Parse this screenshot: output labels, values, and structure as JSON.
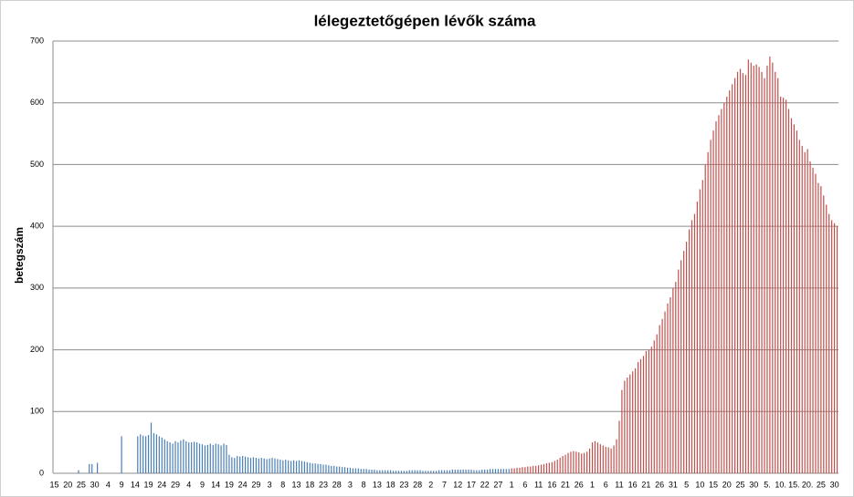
{
  "chart_data": {
    "type": "bar",
    "title": "lélegeztetőgépen lévők száma",
    "y_label": "betegszám",
    "categories": [
      "15",
      null,
      null,
      null,
      null,
      "20",
      null,
      null,
      null,
      null,
      "25",
      null,
      null,
      null,
      null,
      "30",
      null,
      null,
      null,
      null,
      "4",
      null,
      null,
      null,
      null,
      "9",
      null,
      null,
      null,
      null,
      "14",
      null,
      null,
      null,
      null,
      "19",
      null,
      null,
      null,
      null,
      "24",
      null,
      null,
      null,
      null,
      "29",
      null,
      null,
      null,
      null,
      "4",
      null,
      null,
      null,
      null,
      "9",
      null,
      null,
      null,
      null,
      "14",
      null,
      null,
      null,
      null,
      "19",
      null,
      null,
      null,
      null,
      "24",
      null,
      null,
      null,
      null,
      "29",
      null,
      null,
      null,
      null,
      "3",
      null,
      null,
      null,
      null,
      "8",
      null,
      null,
      null,
      null,
      "13",
      null,
      null,
      null,
      null,
      "18",
      null,
      null,
      null,
      null,
      "23",
      null,
      null,
      null,
      null,
      "28",
      null,
      null,
      null,
      null,
      "3",
      null,
      null,
      null,
      null,
      "8",
      null,
      null,
      null,
      null,
      "13",
      null,
      null,
      null,
      null,
      "18",
      null,
      null,
      null,
      null,
      "23",
      null,
      null,
      null,
      null,
      "28",
      null,
      null,
      null,
      null,
      "2",
      null,
      null,
      null,
      null,
      "7",
      null,
      null,
      null,
      null,
      "12",
      null,
      null,
      null,
      null,
      "17",
      null,
      null,
      null,
      null,
      "22",
      null,
      null,
      null,
      null,
      "27",
      null,
      null,
      null,
      null,
      "1",
      null,
      null,
      null,
      null,
      "6",
      null,
      null,
      null,
      null,
      "11",
      null,
      null,
      null,
      null,
      "16",
      null,
      null,
      null,
      null,
      "21",
      null,
      null,
      null,
      null,
      "26",
      null,
      null,
      null,
      null,
      "1",
      null,
      null,
      null,
      null,
      "6",
      null,
      null,
      null,
      null,
      "11",
      null,
      null,
      null,
      null,
      "16",
      null,
      null,
      null,
      null,
      "21",
      null,
      null,
      null,
      null,
      "26",
      null,
      null,
      null,
      null,
      "31",
      null,
      null,
      null,
      null,
      "5",
      null,
      null,
      null,
      null,
      "10",
      null,
      null,
      null,
      null,
      "15",
      null,
      null,
      null,
      null,
      "20",
      null,
      null,
      null,
      null,
      "25",
      null,
      null,
      null,
      null,
      "30",
      null,
      null,
      null,
      null,
      "5.",
      null,
      null,
      null,
      null,
      "10.",
      null,
      null,
      null,
      null,
      "15.",
      null,
      null,
      null,
      null,
      "20.",
      null,
      null,
      null,
      null,
      "25",
      null,
      null,
      null,
      null,
      "30",
      null
    ],
    "series": [
      {
        "color": "#4a7eb6",
        "values": [
          0,
          0,
          0,
          0,
          0,
          0,
          0,
          0,
          0,
          5,
          0,
          0,
          0,
          15,
          15,
          0,
          17,
          0,
          0,
          0,
          0,
          0,
          0,
          0,
          0,
          60,
          0,
          0,
          0,
          0,
          0,
          60,
          63,
          61,
          60,
          62,
          82,
          65,
          63,
          60,
          58,
          55,
          52,
          50,
          48,
          52,
          50,
          53,
          55,
          52,
          50,
          50,
          51,
          50,
          48,
          47,
          45,
          46,
          48,
          46,
          48,
          47,
          45,
          48,
          46,
          30,
          26,
          25,
          28,
          27,
          28,
          27,
          26,
          25,
          26,
          25,
          24,
          25,
          24,
          23,
          24,
          25,
          24,
          23,
          22,
          21,
          22,
          21,
          20,
          21,
          20,
          21,
          20,
          19,
          18,
          17,
          16,
          16,
          15,
          15,
          14,
          14,
          13,
          12,
          12,
          11,
          11,
          10,
          10,
          9,
          9,
          8,
          8,
          8,
          7,
          7,
          7,
          6,
          6,
          6,
          5,
          5,
          5,
          5,
          5,
          5,
          4,
          4,
          4,
          4,
          4,
          4,
          5,
          5,
          5,
          5,
          5,
          4,
          4,
          4,
          4,
          4,
          4,
          5,
          5,
          5,
          5,
          5,
          6,
          6,
          6,
          6,
          6,
          6,
          6,
          6,
          5,
          5,
          5,
          6,
          6,
          6,
          7,
          7,
          7,
          7,
          7,
          7,
          7,
          7,
          null,
          null,
          null,
          null,
          null,
          null,
          null,
          null,
          null,
          null,
          null,
          null,
          null,
          null,
          null,
          null,
          null,
          null,
          null,
          null,
          null,
          null,
          null,
          null,
          null,
          null,
          null,
          null,
          null,
          null,
          null,
          null,
          null,
          null,
          null,
          null,
          null,
          null,
          null,
          null,
          null,
          null,
          null,
          null,
          null,
          null,
          null,
          null,
          null,
          null,
          null,
          null,
          null,
          null,
          null,
          null,
          null,
          null,
          null,
          null,
          null,
          null,
          null,
          null,
          null,
          null,
          null,
          null,
          null,
          null,
          null,
          null,
          null,
          null,
          null,
          null,
          null,
          null,
          null,
          null,
          null,
          null,
          null,
          null,
          null,
          null,
          null,
          null,
          null,
          null,
          null,
          null,
          null,
          null,
          null,
          null,
          null,
          null,
          null,
          null,
          null,
          null,
          null,
          null,
          null,
          null,
          null,
          null,
          null,
          null,
          null,
          null,
          null,
          null,
          null,
          null,
          null,
          null,
          null,
          null,
          null,
          null
        ]
      },
      {
        "color": "#c0504d",
        "values": [
          null,
          null,
          null,
          null,
          null,
          null,
          null,
          null,
          null,
          null,
          null,
          null,
          null,
          null,
          null,
          null,
          null,
          null,
          null,
          null,
          null,
          null,
          null,
          null,
          null,
          null,
          null,
          null,
          null,
          null,
          null,
          null,
          null,
          null,
          null,
          null,
          null,
          null,
          null,
          null,
          null,
          null,
          null,
          null,
          null,
          null,
          null,
          null,
          null,
          null,
          null,
          null,
          null,
          null,
          null,
          null,
          null,
          null,
          null,
          null,
          null,
          null,
          null,
          null,
          null,
          null,
          null,
          null,
          null,
          null,
          null,
          null,
          null,
          null,
          null,
          null,
          null,
          null,
          null,
          null,
          null,
          null,
          null,
          null,
          null,
          null,
          null,
          null,
          null,
          null,
          null,
          null,
          null,
          null,
          null,
          null,
          null,
          null,
          null,
          null,
          null,
          null,
          null,
          null,
          null,
          null,
          null,
          null,
          null,
          null,
          null,
          null,
          null,
          null,
          null,
          null,
          null,
          null,
          null,
          null,
          null,
          null,
          null,
          null,
          null,
          null,
          null,
          null,
          null,
          null,
          null,
          null,
          null,
          null,
          null,
          null,
          null,
          null,
          null,
          null,
          null,
          null,
          null,
          null,
          null,
          null,
          null,
          null,
          null,
          null,
          null,
          null,
          null,
          null,
          null,
          null,
          null,
          null,
          null,
          null,
          null,
          null,
          null,
          null,
          null,
          null,
          null,
          null,
          null,
          null,
          8,
          8,
          9,
          9,
          10,
          10,
          11,
          11,
          12,
          12,
          13,
          14,
          15,
          16,
          17,
          18,
          20,
          22,
          25,
          28,
          30,
          33,
          35,
          36,
          35,
          34,
          32,
          33,
          35,
          40,
          50,
          52,
          50,
          47,
          45,
          43,
          42,
          40,
          45,
          55,
          85,
          135,
          150,
          155,
          160,
          165,
          170,
          180,
          185,
          190,
          198,
          200,
          205,
          215,
          225,
          240,
          250,
          262,
          275,
          285,
          300,
          310,
          330,
          345,
          360,
          375,
          395,
          410,
          420,
          440,
          460,
          475,
          500,
          520,
          540,
          555,
          570,
          580,
          590,
          600,
          610,
          620,
          630,
          640,
          650,
          655,
          648,
          645,
          670,
          665,
          660,
          662,
          658,
          650,
          640,
          660,
          675,
          665,
          650,
          640,
          610,
          608,
          605,
          590,
          575,
          565,
          555,
          540,
          530,
          520,
          525,
          505,
          495,
          485,
          470,
          465,
          450,
          435,
          420,
          410,
          405,
          400
        ]
      }
    ],
    "ylim": [
      0,
      700
    ],
    "yticks": [
      0,
      100,
      200,
      300,
      400,
      500,
      600,
      700
    ],
    "grid": true
  }
}
